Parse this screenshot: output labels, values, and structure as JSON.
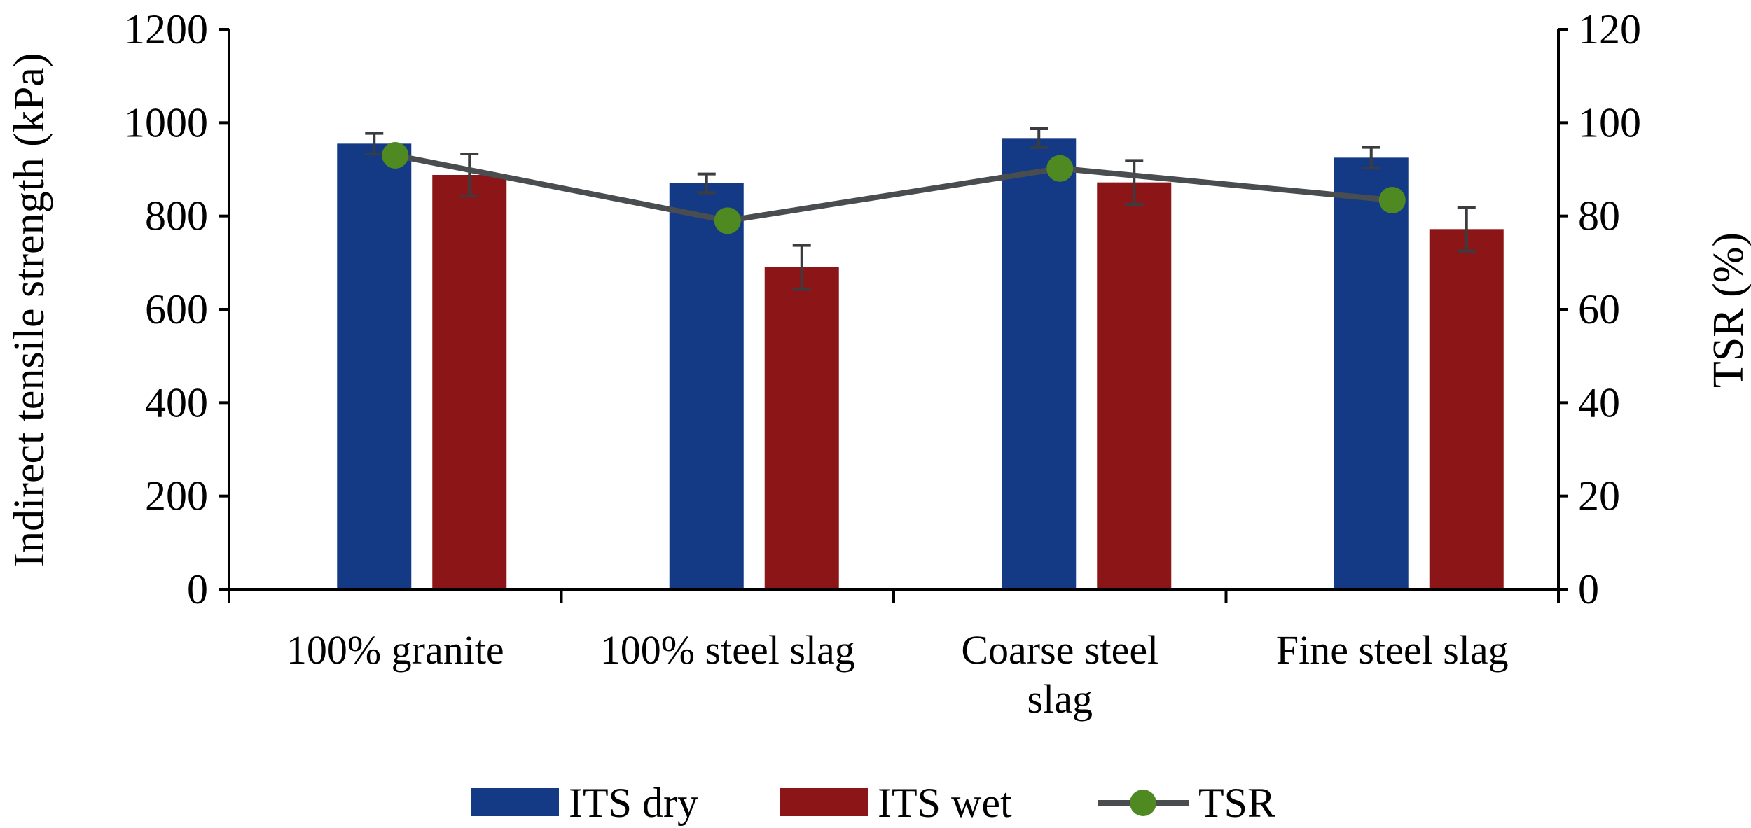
{
  "chart_data": {
    "type": "bar",
    "categories": [
      [
        "100% granite"
      ],
      [
        "100% steel slag"
      ],
      [
        "Coarse steel",
        "slag"
      ],
      [
        "Fine steel slag"
      ]
    ],
    "series": [
      {
        "name": "ITS dry",
        "axis": "left",
        "kind": "bar",
        "color": "#143a86",
        "values": [
          955,
          870,
          967,
          925
        ],
        "errors": [
          22,
          20,
          20,
          22
        ]
      },
      {
        "name": "ITS wet",
        "axis": "left",
        "kind": "bar",
        "color": "#8b1517",
        "values": [
          888,
          690,
          872,
          772
        ],
        "errors": [
          45,
          47,
          47,
          47
        ]
      },
      {
        "name": "TSR",
        "axis": "right",
        "kind": "line",
        "color": "#4a4d50",
        "marker_color": "#4e8a21",
        "values": [
          93,
          79,
          90.2,
          83.4
        ],
        "errors": [
          0,
          0,
          0,
          0
        ]
      }
    ],
    "error_bar_color": "#3a3d40",
    "ylabel": "Indirect tensile strength (kPa)",
    "y2label": "TSR (%)",
    "ylim": [
      0,
      1200
    ],
    "y2lim": [
      0,
      120
    ],
    "yticks": [
      "0",
      "200",
      "400",
      "600",
      "800",
      "1000",
      "1200"
    ],
    "y2ticks": [
      "0",
      "20",
      "40",
      "60",
      "80",
      "100",
      "120"
    ],
    "legend": [
      "ITS dry",
      "ITS wet",
      "TSR"
    ],
    "legend_position": "bottom-center",
    "grid": false
  }
}
